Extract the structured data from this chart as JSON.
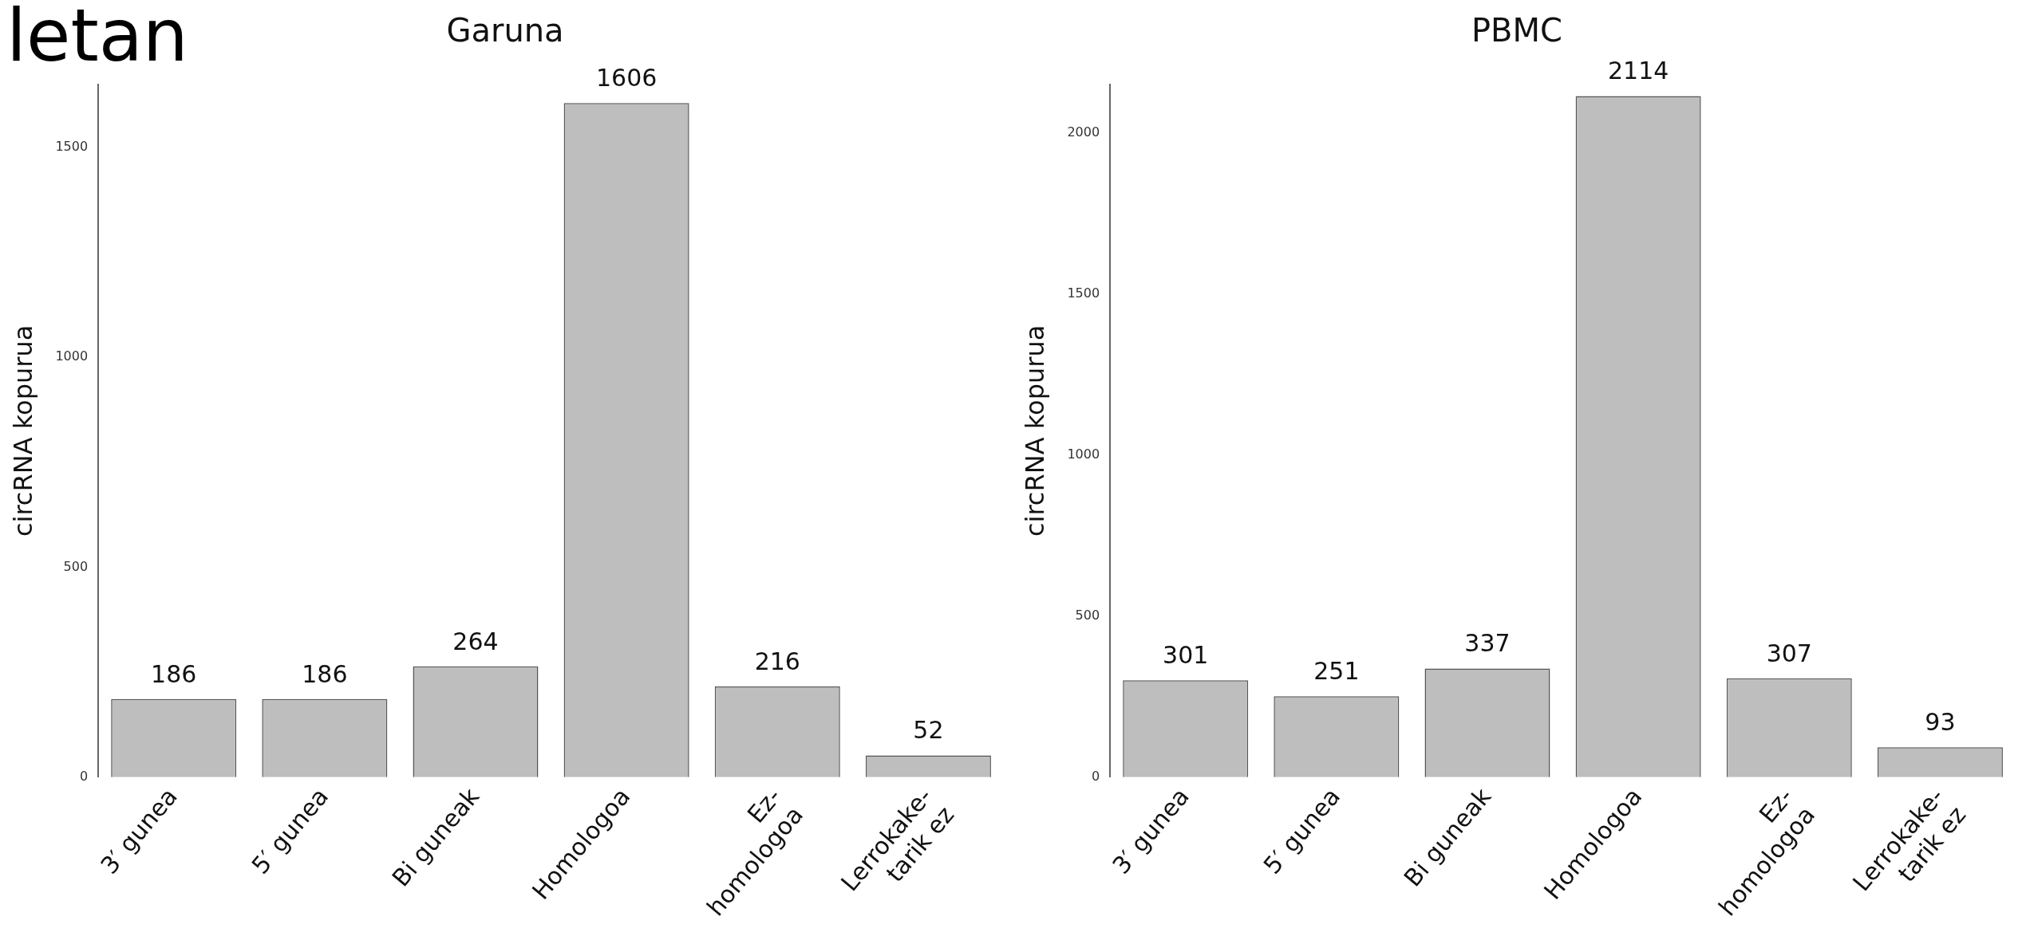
{
  "chart_data": [
    {
      "type": "bar",
      "title": "Garuna",
      "ylabel": "circRNA kopurua",
      "annotations": [
        "letan"
      ],
      "categories": [
        "3′ gunea",
        "5′ gunea",
        "Bi guneak",
        "Homologoa",
        "Ez-homologoa",
        "Lerrokake-tarik ez"
      ],
      "values": [
        186,
        186,
        264,
        1606,
        216,
        52
      ],
      "color": "#bebebe",
      "data_labels": true,
      "ylim": [
        0,
        1650
      ],
      "yticks": [
        0,
        500,
        1000,
        1500
      ],
      "grid": false,
      "legend": false
    },
    {
      "type": "bar",
      "title": "PBMC",
      "ylabel": "circRNA kopurua",
      "categories": [
        "3′ gunea",
        "5′ gunea",
        "Bi guneak",
        "Homologoa",
        "Ez-homologoa",
        "Lerrokake-tarik ez"
      ],
      "values": [
        301,
        251,
        337,
        2114,
        307,
        93
      ],
      "color": "#bebebe",
      "data_labels": true,
      "ylim": [
        0,
        2150
      ],
      "yticks": [
        0,
        500,
        1000,
        1500,
        2000
      ],
      "grid": false,
      "legend": false
    }
  ]
}
